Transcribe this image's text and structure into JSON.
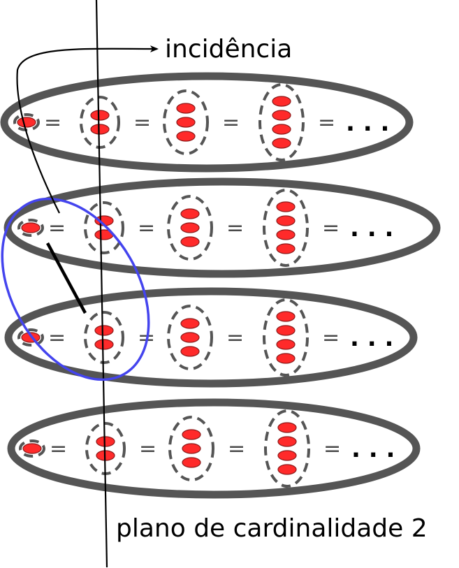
{
  "labels": {
    "incidence": "incidência",
    "plane": "plano de cardinalidade 2"
  },
  "symbols": {
    "equals": "=",
    "ellipsis": ". . ."
  },
  "colors": {
    "outer_ring": "#555555",
    "dashed_set": "#555555",
    "element_fill": "#ff2a2a",
    "element_stroke": "#8b1a1a",
    "highlight": "#4444ee",
    "line": "#000000"
  },
  "rows": [
    {
      "set_sizes": [
        1,
        2,
        3,
        4
      ]
    },
    {
      "set_sizes": [
        1,
        2,
        3,
        4
      ]
    },
    {
      "set_sizes": [
        1,
        2,
        3,
        4
      ]
    },
    {
      "set_sizes": [
        1,
        2,
        3,
        4
      ]
    }
  ]
}
